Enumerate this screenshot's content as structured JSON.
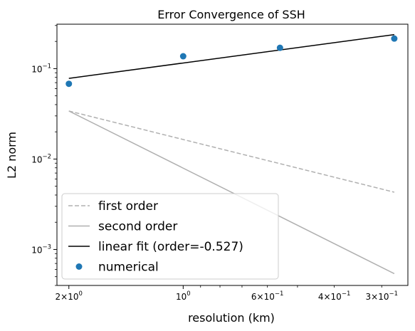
{
  "chart_data": {
    "type": "line",
    "title": "Error Convergence of SSH",
    "xlabel": "resolution (km)",
    "ylabel": "L2 norm",
    "x_scale": "log",
    "y_scale": "log",
    "x_inverted": true,
    "xlim": [
      2.15,
      0.256
    ],
    "ylim": [
      0.0004,
      0.31
    ],
    "grid": false,
    "legend_position": "lower-left",
    "x_major_ticks": [
      {
        "value": 2,
        "base": "2",
        "exp": "0"
      },
      {
        "value": 1,
        "base": "10",
        "exp": "0"
      }
    ],
    "x_minor_ticks": [
      {
        "value": 0.6,
        "base": "6",
        "exp": "−1"
      },
      {
        "value": 0.4,
        "base": "4",
        "exp": "−1"
      },
      {
        "value": 0.3,
        "base": "3",
        "exp": "−1"
      }
    ],
    "x_minor_unlabeled": [
      0.9,
      0.8,
      0.7,
      0.5
    ],
    "y_major_ticks": [
      {
        "value": 0.1,
        "base": "10",
        "exp": "−1"
      },
      {
        "value": 0.01,
        "base": "10",
        "exp": "−2"
      },
      {
        "value": 0.001,
        "base": "10",
        "exp": "−3"
      }
    ],
    "series": [
      {
        "name": "first order",
        "kind": "line",
        "style": "dashed",
        "color": "#b0b0b0",
        "x": [
          2,
          0.278
        ],
        "y": [
          0.034,
          0.0043
        ]
      },
      {
        "name": "second order",
        "kind": "line",
        "style": "solid",
        "color": "#b0b0b0",
        "x": [
          2,
          0.278
        ],
        "y": [
          0.034,
          0.00054
        ]
      },
      {
        "name": "linear fit (order=-0.527)",
        "kind": "line",
        "style": "solid",
        "color": "#000000",
        "x": [
          2,
          0.278
        ],
        "y": [
          0.078,
          0.238
        ]
      },
      {
        "name": "numerical",
        "kind": "scatter",
        "color": "#1f77b4",
        "x": [
          2,
          1,
          0.556,
          0.278
        ],
        "y": [
          0.068,
          0.137,
          0.17,
          0.215
        ]
      }
    ]
  }
}
